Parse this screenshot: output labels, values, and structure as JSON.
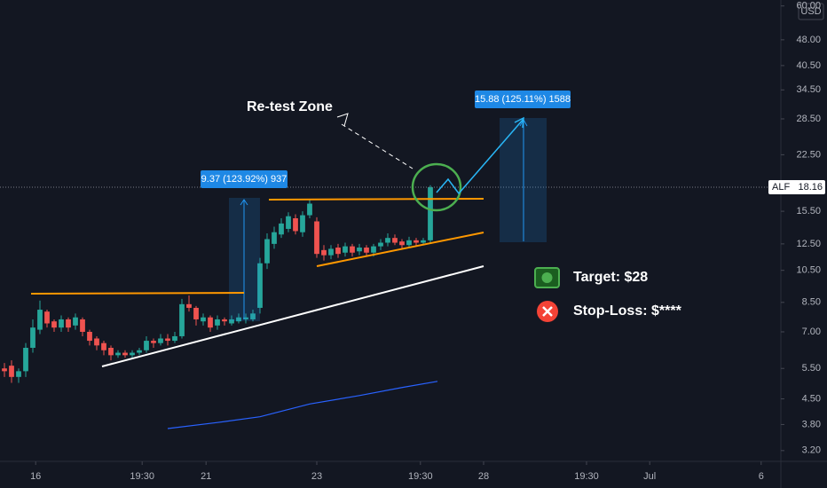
{
  "chart_data": {
    "type": "candlestick",
    "symbol": "ALF",
    "currency": "USD",
    "last_price": 18.16,
    "up_color": "#26a69a",
    "down_color": "#ef5350",
    "log_scale": true,
    "ylim": [
      2.98,
      62.4
    ],
    "yticks": [
      {
        "value": 3.2,
        "label": "3.20"
      },
      {
        "value": 3.8,
        "label": "3.80"
      },
      {
        "value": 4.5,
        "label": "4.50"
      },
      {
        "value": 5.5,
        "label": "5.50"
      },
      {
        "value": 7,
        "label": "7.00"
      },
      {
        "value": 8.5,
        "label": "8.50"
      },
      {
        "value": 10.5,
        "label": "10.50"
      },
      {
        "value": 12.5,
        "label": "12.50"
      },
      {
        "value": 15.5,
        "label": "15.50"
      },
      {
        "value": 22.5,
        "label": "22.50"
      },
      {
        "value": 28.5,
        "label": "28.50"
      },
      {
        "value": 34.5,
        "label": "34.50"
      },
      {
        "value": 40.5,
        "label": "40.50"
      },
      {
        "value": 48,
        "label": "48.00"
      },
      {
        "value": 60,
        "label": "60.00"
      }
    ],
    "xlim": [
      -0.625,
      109.375
    ],
    "xticks": [
      {
        "value": 4.4,
        "label": "16"
      },
      {
        "value": 19.4,
        "label": "19:30"
      },
      {
        "value": 28.4,
        "label": "21"
      },
      {
        "value": 44,
        "label": "23"
      },
      {
        "value": 58.6,
        "label": "19:30"
      },
      {
        "value": 67.5,
        "label": "28"
      },
      {
        "value": 82,
        "label": "19:30"
      },
      {
        "value": 90.9,
        "label": "Jul"
      },
      {
        "value": 106.6,
        "label": "6"
      }
    ],
    "open": [
      5.5,
      5.6,
      5.2,
      5.4,
      6.3,
      7.1,
      8.0,
      7.5,
      7.2,
      7.6,
      7.3,
      7.6,
      7.0,
      6.7,
      6.5,
      6.3,
      6.0,
      6.1,
      6.0,
      6.1,
      6.2,
      6.6,
      6.5,
      6.7,
      6.6,
      6.8,
      8.4,
      8.2,
      7.5,
      7.7,
      7.3,
      7.6,
      7.4,
      7.5,
      7.6,
      7.6,
      8.2,
      11.0,
      12.5,
      13.3,
      13.8,
      14.8,
      13.5,
      15.1,
      14.5,
      12.0,
      11.6,
      12.2,
      11.8,
      12.3,
      11.9,
      12.2,
      11.8,
      12.3,
      12.6,
      13.0,
      12.7,
      12.4,
      12.8,
      12.6,
      12.8
    ],
    "high": [
      5.7,
      5.8,
      5.5,
      6.5,
      7.6,
      8.6,
      8.1,
      7.6,
      7.8,
      7.7,
      7.9,
      7.7,
      7.1,
      6.8,
      6.6,
      6.4,
      6.2,
      6.2,
      6.2,
      6.3,
      6.8,
      6.7,
      6.9,
      6.9,
      7.0,
      8.7,
      8.9,
      8.3,
      7.9,
      7.8,
      7.8,
      7.7,
      7.8,
      7.9,
      7.9,
      8.1,
      11.4,
      13.4,
      14.0,
      14.8,
      15.4,
      15.2,
      15.5,
      16.8,
      14.9,
      12.4,
      12.4,
      12.5,
      12.6,
      12.5,
      12.5,
      12.4,
      12.5,
      12.9,
      13.4,
      13.3,
      12.9,
      13.1,
      13.0,
      13.0,
      18.4
    ],
    "low": [
      5.2,
      5.0,
      5.0,
      5.2,
      6.1,
      6.9,
      7.2,
      7.0,
      7.0,
      7.0,
      7.1,
      6.8,
      6.4,
      6.2,
      6.0,
      5.8,
      5.9,
      5.9,
      5.9,
      6.0,
      6.1,
      6.3,
      6.4,
      6.4,
      6.5,
      6.7,
      8.0,
      7.3,
      7.3,
      7.0,
      7.1,
      7.3,
      7.3,
      7.4,
      7.4,
      7.5,
      7.9,
      10.6,
      12.1,
      13.0,
      13.5,
      13.3,
      13.1,
      14.8,
      11.4,
      11.2,
      11.3,
      11.4,
      11.5,
      11.5,
      11.6,
      11.5,
      11.5,
      12.0,
      12.3,
      12.4,
      12.1,
      12.2,
      12.3,
      12.4,
      12.5
    ],
    "close": [
      5.4,
      5.2,
      5.4,
      6.3,
      7.2,
      8.1,
      7.4,
      7.2,
      7.6,
      7.2,
      7.7,
      7.0,
      6.6,
      6.4,
      6.2,
      6.0,
      6.1,
      6.0,
      6.1,
      6.2,
      6.6,
      6.5,
      6.7,
      6.6,
      6.8,
      8.4,
      8.2,
      7.6,
      7.7,
      7.2,
      7.6,
      7.5,
      7.6,
      7.7,
      7.7,
      7.9,
      11.0,
      12.9,
      13.5,
      14.3,
      15.0,
      13.6,
      15.1,
      16.3,
      11.7,
      11.6,
      12.1,
      11.7,
      12.3,
      11.8,
      12.2,
      11.8,
      12.3,
      12.6,
      13.0,
      12.6,
      12.4,
      12.8,
      12.6,
      12.8,
      18.16
    ],
    "moving_average": {
      "color": "#2962ff",
      "x": [
        23,
        30,
        36,
        43,
        50,
        56,
        61
      ],
      "values": [
        3.7,
        3.85,
        4.0,
        4.35,
        4.6,
        4.85,
        5.05
      ]
    },
    "retest_label": "Re-test Zone",
    "measure_1": "9.37 (123.92%) 937",
    "measure_2": "15.88 (125.11%) 1588",
    "target": "Target: $28",
    "stop_loss": "Stop-Loss: $****"
  }
}
